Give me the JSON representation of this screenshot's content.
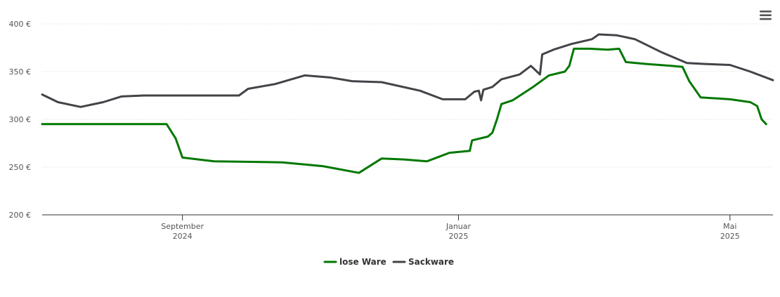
{
  "chart_data": {
    "type": "line",
    "title": "",
    "xlabel": "",
    "ylabel": "",
    "ylim": [
      200,
      400
    ],
    "y_ticks": [
      200,
      250,
      300,
      350,
      400
    ],
    "y_tick_labels": [
      "200 €",
      "250 €",
      "300 €",
      "350 €",
      "400 €"
    ],
    "y_unit": "€",
    "xlim": [
      "2024-07-01",
      "2025-05-20"
    ],
    "x_ticks": [
      {
        "date": "2024-09-01",
        "month": "September",
        "year": "2024"
      },
      {
        "date": "2025-01-01",
        "month": "Januar",
        "year": "2025"
      },
      {
        "date": "2025-05-01",
        "month": "Mai",
        "year": "2025"
      }
    ],
    "grid": true,
    "legend": "bottom",
    "series": [
      {
        "name": "lose Ware",
        "color": "#007800",
        "points": [
          [
            "2024-07-01",
            295
          ],
          [
            "2024-08-25",
            295
          ],
          [
            "2024-08-29",
            280
          ],
          [
            "2024-09-01",
            260
          ],
          [
            "2024-09-15",
            256
          ],
          [
            "2024-10-15",
            255
          ],
          [
            "2024-11-02",
            251
          ],
          [
            "2024-11-18",
            244
          ],
          [
            "2024-11-28",
            259
          ],
          [
            "2024-12-08",
            258
          ],
          [
            "2024-12-18",
            256
          ],
          [
            "2024-12-28",
            265
          ],
          [
            "2025-01-06",
            267
          ],
          [
            "2025-01-07",
            278
          ],
          [
            "2025-01-14",
            282
          ],
          [
            "2025-01-16",
            286
          ],
          [
            "2025-01-18",
            300
          ],
          [
            "2025-01-20",
            316
          ],
          [
            "2025-01-25",
            320
          ],
          [
            "2025-02-03",
            334
          ],
          [
            "2025-02-10",
            346
          ],
          [
            "2025-02-17",
            350
          ],
          [
            "2025-02-19",
            356
          ],
          [
            "2025-02-21",
            374
          ],
          [
            "2025-02-28",
            374
          ],
          [
            "2025-03-08",
            373
          ],
          [
            "2025-03-13",
            374
          ],
          [
            "2025-03-16",
            360
          ],
          [
            "2025-03-25",
            358
          ],
          [
            "2025-04-05",
            356
          ],
          [
            "2025-04-10",
            355
          ],
          [
            "2025-04-13",
            340
          ],
          [
            "2025-04-18",
            323
          ],
          [
            "2025-05-01",
            321
          ],
          [
            "2025-05-10",
            318
          ],
          [
            "2025-05-13",
            314
          ],
          [
            "2025-05-15",
            300
          ],
          [
            "2025-05-17",
            295
          ]
        ]
      },
      {
        "name": "Sackware",
        "color": "#434348",
        "points": [
          [
            "2024-07-01",
            326
          ],
          [
            "2024-07-08",
            318
          ],
          [
            "2024-07-18",
            313
          ],
          [
            "2024-07-28",
            318
          ],
          [
            "2024-08-05",
            324
          ],
          [
            "2024-08-15",
            325
          ],
          [
            "2024-09-26",
            325
          ],
          [
            "2024-09-30",
            332
          ],
          [
            "2024-10-12",
            337
          ],
          [
            "2024-10-25",
            346
          ],
          [
            "2024-11-05",
            344
          ],
          [
            "2024-11-15",
            340
          ],
          [
            "2024-11-28",
            339
          ],
          [
            "2024-12-15",
            330
          ],
          [
            "2024-12-25",
            321
          ],
          [
            "2025-01-04",
            321
          ],
          [
            "2025-01-08",
            329
          ],
          [
            "2025-01-10",
            330
          ],
          [
            "2025-01-11",
            320
          ],
          [
            "2025-01-12",
            331
          ],
          [
            "2025-01-16",
            334
          ],
          [
            "2025-01-20",
            342
          ],
          [
            "2025-01-28",
            347
          ],
          [
            "2025-02-02",
            356
          ],
          [
            "2025-02-06",
            347
          ],
          [
            "2025-02-07",
            368
          ],
          [
            "2025-02-12",
            373
          ],
          [
            "2025-02-20",
            379
          ],
          [
            "2025-03-01",
            384
          ],
          [
            "2025-03-04",
            389
          ],
          [
            "2025-03-12",
            388
          ],
          [
            "2025-03-20",
            384
          ],
          [
            "2025-04-01",
            370
          ],
          [
            "2025-04-12",
            359
          ],
          [
            "2025-04-20",
            358
          ],
          [
            "2025-05-01",
            357
          ],
          [
            "2025-05-10",
            350
          ],
          [
            "2025-05-20",
            341
          ]
        ]
      }
    ]
  },
  "menu": {
    "icon": "hamburger-menu-icon"
  }
}
